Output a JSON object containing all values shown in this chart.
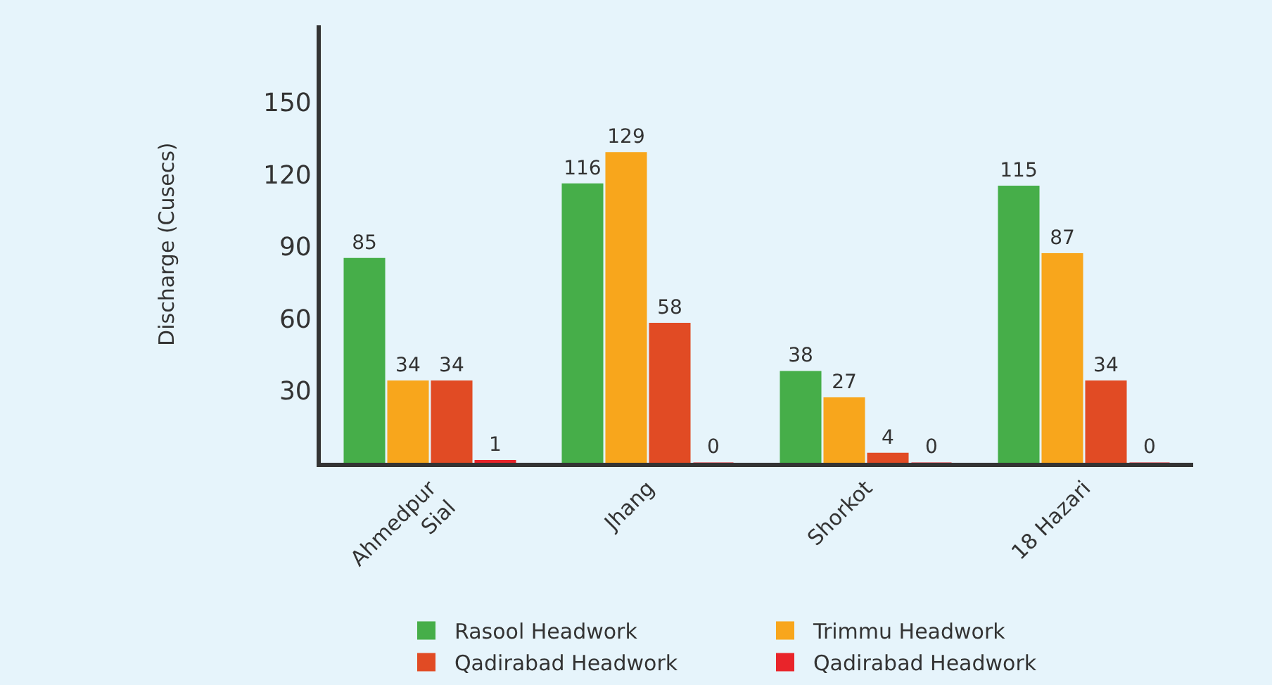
{
  "chart_data": {
    "type": "bar",
    "ylabel": "Discharge (Cusecs)",
    "categories": [
      "Ahmedpur\nSial",
      "Jhang",
      "Shorkot",
      "18 Hazari"
    ],
    "series": [
      {
        "name": "Rasool Headwork",
        "color": "#46ae49",
        "values": [
          85,
          116,
          38,
          115
        ]
      },
      {
        "name": "Trimmu Headwork",
        "color": "#f8a61c",
        "values": [
          34,
          129,
          27,
          87
        ]
      },
      {
        "name": "Qadirabad Headwork",
        "color": "#e14b24",
        "values": [
          34,
          58,
          4,
          34
        ]
      },
      {
        "name": "Qadirabad Headwork",
        "color": "#e9242a",
        "values": [
          1,
          0,
          0,
          0
        ]
      }
    ],
    "ylim": [
      0,
      182
    ],
    "yticks": [
      30,
      60,
      90,
      120,
      150
    ],
    "grid": false,
    "legend": "bottom",
    "data_labels": true
  }
}
